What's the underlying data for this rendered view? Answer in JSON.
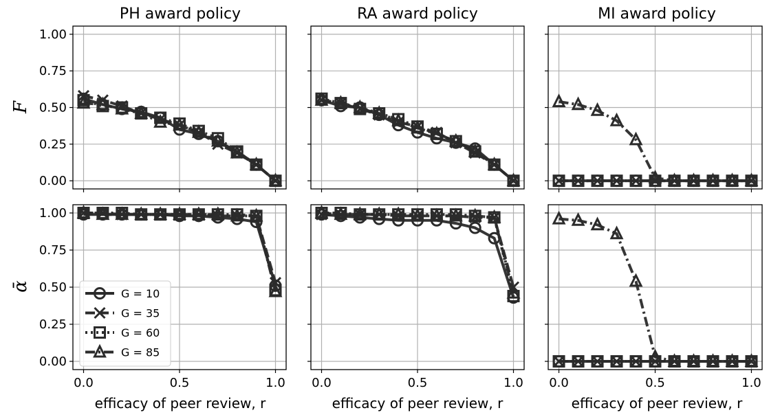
{
  "figure": {
    "panel_titles": [
      "PH award policy",
      "RA award policy",
      "MI award policy"
    ],
    "xlabel": "efficacy of peer review, r",
    "ylabels": [
      "F",
      "ᾱ"
    ]
  },
  "chart_data": [
    {
      "type": "line",
      "title": "PH award policy",
      "row_label": "F",
      "xlabel": "",
      "xlim": [
        0,
        1
      ],
      "ylim": [
        0,
        1
      ],
      "x_ticks": [
        0.0,
        0.5,
        1.0
      ],
      "y_ticks": [
        0.0,
        0.25,
        0.5,
        0.75,
        1.0
      ],
      "grid": true,
      "x": [
        0,
        0.1,
        0.2,
        0.3,
        0.4,
        0.5,
        0.6,
        0.7,
        0.8,
        0.9,
        1.0
      ],
      "series": [
        {
          "name": "G = 10",
          "values": [
            0.56,
            0.52,
            0.49,
            0.47,
            0.43,
            0.35,
            0.32,
            0.27,
            0.2,
            0.11,
            0.0
          ]
        },
        {
          "name": "G = 35",
          "values": [
            0.58,
            0.55,
            0.51,
            0.46,
            0.42,
            0.38,
            0.33,
            0.25,
            0.19,
            0.11,
            0.0
          ]
        },
        {
          "name": "G = 60",
          "values": [
            0.55,
            0.51,
            0.5,
            0.46,
            0.43,
            0.39,
            0.34,
            0.29,
            0.2,
            0.11,
            0.0
          ]
        },
        {
          "name": "G = 85",
          "values": [
            0.53,
            0.52,
            0.49,
            0.46,
            0.4,
            0.38,
            0.33,
            0.27,
            0.19,
            0.11,
            0.0
          ]
        }
      ]
    },
    {
      "type": "line",
      "title": "RA award policy",
      "row_label": "F",
      "xlabel": "",
      "xlim": [
        0,
        1
      ],
      "ylim": [
        0,
        1
      ],
      "x_ticks": [
        0.0,
        0.5,
        1.0
      ],
      "y_ticks": [
        0.0,
        0.25,
        0.5,
        0.75,
        1.0
      ],
      "grid": true,
      "x": [
        0,
        0.1,
        0.2,
        0.3,
        0.4,
        0.5,
        0.6,
        0.7,
        0.8,
        0.9,
        1.0
      ],
      "series": [
        {
          "name": "G = 10",
          "values": [
            0.55,
            0.51,
            0.5,
            0.45,
            0.38,
            0.33,
            0.29,
            0.26,
            0.22,
            0.11,
            0.0
          ]
        },
        {
          "name": "G = 35",
          "values": [
            0.55,
            0.53,
            0.49,
            0.45,
            0.4,
            0.37,
            0.33,
            0.26,
            0.19,
            0.11,
            0.0
          ]
        },
        {
          "name": "G = 60",
          "values": [
            0.56,
            0.53,
            0.49,
            0.46,
            0.42,
            0.37,
            0.32,
            0.27,
            0.2,
            0.11,
            0.0
          ]
        },
        {
          "name": "G = 85",
          "values": [
            0.55,
            0.53,
            0.5,
            0.46,
            0.41,
            0.36,
            0.32,
            0.27,
            0.2,
            0.11,
            0.0
          ]
        }
      ]
    },
    {
      "type": "line",
      "title": "MI award policy",
      "row_label": "F",
      "xlabel": "",
      "xlim": [
        0,
        1
      ],
      "ylim": [
        0,
        1
      ],
      "x_ticks": [
        0.0,
        0.5,
        1.0
      ],
      "y_ticks": [
        0.0,
        0.25,
        0.5,
        0.75,
        1.0
      ],
      "grid": true,
      "x": [
        0,
        0.1,
        0.2,
        0.3,
        0.4,
        0.5,
        0.6,
        0.7,
        0.8,
        0.9,
        1.0
      ],
      "series": [
        {
          "name": "G = 10",
          "values": [
            0,
            0,
            0,
            0,
            0,
            0,
            0,
            0,
            0,
            0,
            0
          ]
        },
        {
          "name": "G = 35",
          "values": [
            0,
            0,
            0,
            0,
            0,
            0,
            0,
            0,
            0,
            0,
            0
          ]
        },
        {
          "name": "G = 60",
          "values": [
            0,
            0,
            0,
            0,
            0,
            0,
            0,
            0,
            0,
            0,
            0
          ]
        },
        {
          "name": "G = 85",
          "values": [
            0.54,
            0.52,
            0.48,
            0.41,
            0.28,
            0.02,
            0,
            0,
            0,
            0,
            0
          ]
        }
      ]
    },
    {
      "type": "line",
      "title": "",
      "row_label": "ᾱ",
      "xlabel": "efficacy of peer review, r",
      "xlim": [
        0,
        1
      ],
      "ylim": [
        0,
        1
      ],
      "x_ticks": [
        0.0,
        0.5,
        1.0
      ],
      "y_ticks": [
        0.0,
        0.25,
        0.5,
        0.75,
        1.0
      ],
      "grid": true,
      "legend": "lower-left",
      "x": [
        0,
        0.1,
        0.2,
        0.3,
        0.4,
        0.5,
        0.6,
        0.7,
        0.8,
        0.9,
        1.0
      ],
      "series": [
        {
          "name": "G = 10",
          "values": [
            0.99,
            0.99,
            0.99,
            0.99,
            0.99,
            0.98,
            0.98,
            0.97,
            0.96,
            0.94,
            0.51
          ]
        },
        {
          "name": "G = 35",
          "values": [
            1.0,
            1.0,
            0.99,
            0.99,
            0.99,
            0.99,
            0.99,
            0.98,
            0.98,
            0.98,
            0.53
          ]
        },
        {
          "name": "G = 60",
          "values": [
            1.0,
            1.0,
            1.0,
            0.99,
            0.99,
            0.99,
            0.99,
            0.99,
            0.99,
            0.98,
            0.48
          ]
        },
        {
          "name": "G = 85",
          "values": [
            1.0,
            0.99,
            0.99,
            0.99,
            0.99,
            0.99,
            0.99,
            0.99,
            0.98,
            0.98,
            0.47
          ]
        }
      ]
    },
    {
      "type": "line",
      "title": "",
      "row_label": "ᾱ",
      "xlabel": "efficacy of peer review, r",
      "xlim": [
        0,
        1
      ],
      "ylim": [
        0,
        1
      ],
      "x_ticks": [
        0.0,
        0.5,
        1.0
      ],
      "y_ticks": [
        0.0,
        0.25,
        0.5,
        0.75,
        1.0
      ],
      "grid": true,
      "x": [
        0,
        0.1,
        0.2,
        0.3,
        0.4,
        0.5,
        0.6,
        0.7,
        0.8,
        0.9,
        1.0
      ],
      "series": [
        {
          "name": "G = 10",
          "values": [
            0.99,
            0.98,
            0.97,
            0.96,
            0.95,
            0.95,
            0.95,
            0.93,
            0.9,
            0.83,
            0.43
          ]
        },
        {
          "name": "G = 35",
          "values": [
            0.99,
            0.99,
            0.99,
            0.99,
            0.98,
            0.98,
            0.98,
            0.98,
            0.97,
            0.97,
            0.5
          ]
        },
        {
          "name": "G = 60",
          "values": [
            1.0,
            1.0,
            0.99,
            0.99,
            0.99,
            0.99,
            0.99,
            0.99,
            0.98,
            0.97,
            0.44
          ]
        },
        {
          "name": "G = 85",
          "values": [
            1.0,
            0.99,
            0.99,
            0.99,
            0.99,
            0.98,
            0.98,
            0.98,
            0.98,
            0.97,
            0.46
          ]
        }
      ]
    },
    {
      "type": "line",
      "title": "",
      "row_label": "ᾱ",
      "xlabel": "efficacy of peer review, r",
      "xlim": [
        0,
        1
      ],
      "ylim": [
        0,
        1
      ],
      "x_ticks": [
        0.0,
        0.5,
        1.0
      ],
      "y_ticks": [
        0.0,
        0.25,
        0.5,
        0.75,
        1.0
      ],
      "grid": true,
      "x": [
        0,
        0.1,
        0.2,
        0.3,
        0.4,
        0.5,
        0.6,
        0.7,
        0.8,
        0.9,
        1.0
      ],
      "series": [
        {
          "name": "G = 10",
          "values": [
            0,
            0,
            0,
            0,
            0,
            0,
            0,
            0,
            0,
            0,
            0
          ]
        },
        {
          "name": "G = 35",
          "values": [
            0,
            0,
            0,
            0,
            0,
            0,
            0,
            0,
            0,
            0,
            0
          ]
        },
        {
          "name": "G = 60",
          "values": [
            0,
            0,
            0,
            0,
            0,
            0,
            0,
            0,
            0,
            0,
            0
          ]
        },
        {
          "name": "G = 85",
          "values": [
            0.96,
            0.95,
            0.92,
            0.86,
            0.54,
            0.03,
            0,
            0,
            0,
            0,
            0
          ]
        }
      ]
    }
  ],
  "legend": {
    "location": "lower-left",
    "entries": [
      {
        "label": "G = 10",
        "marker": "circle",
        "line": "solid"
      },
      {
        "label": "G = 35",
        "marker": "x",
        "line": "dashed"
      },
      {
        "label": "G = 60",
        "marker": "square",
        "line": "dotted"
      },
      {
        "label": "G = 85",
        "marker": "triangle",
        "line": "dashdot"
      }
    ]
  },
  "style": {
    "line_color": "#2b2b2b",
    "grid_color": "#b0b0b0",
    "frame_color": "#000000"
  }
}
